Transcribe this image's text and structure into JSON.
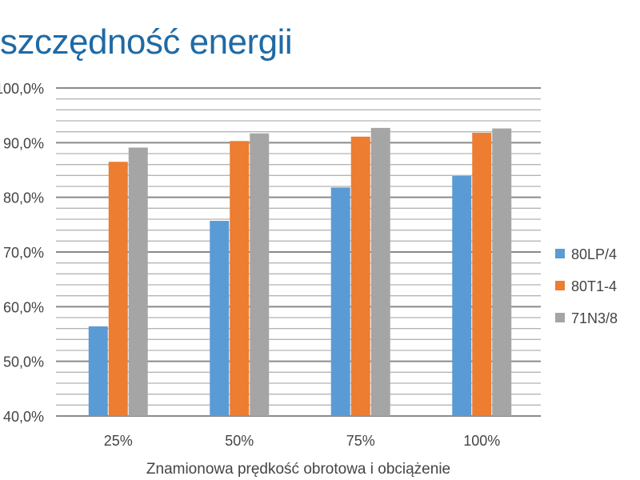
{
  "title": "szczędność energii",
  "chart_data": {
    "type": "bar",
    "title": "szczędność energii",
    "xlabel": "Znamionowa prędkość obrotowa i obciążenie",
    "ylabel": "",
    "categories": [
      "25%",
      "50%",
      "75%",
      "100%"
    ],
    "ylim": [
      40,
      100
    ],
    "yticks": [
      "40,0%",
      "50,0%",
      "60,0%",
      "70,0%",
      "80,0%",
      "90,0%",
      "100,0%"
    ],
    "grid": true,
    "legend": "right",
    "series": [
      {
        "name": "80LP/4",
        "color": "#5b9bd5",
        "values": [
          56.4,
          75.7,
          81.8,
          83.9
        ]
      },
      {
        "name": "80T1-4",
        "color": "#ed7d31",
        "values": [
          86.5,
          90.3,
          91.1,
          91.8
        ]
      },
      {
        "name": "71N3/8",
        "color": "#a5a5a5",
        "values": [
          89.1,
          91.7,
          92.7,
          92.6
        ]
      }
    ]
  }
}
